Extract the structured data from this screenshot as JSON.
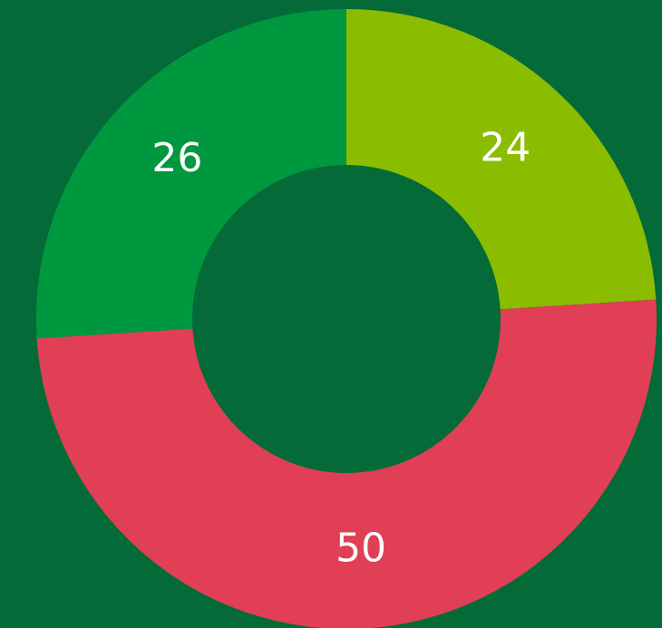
{
  "chart_data": {
    "type": "donut",
    "values": [
      24,
      50,
      26
    ],
    "colors": [
      "#8abd00",
      "#e03f55",
      "#00983f"
    ]
  }
}
